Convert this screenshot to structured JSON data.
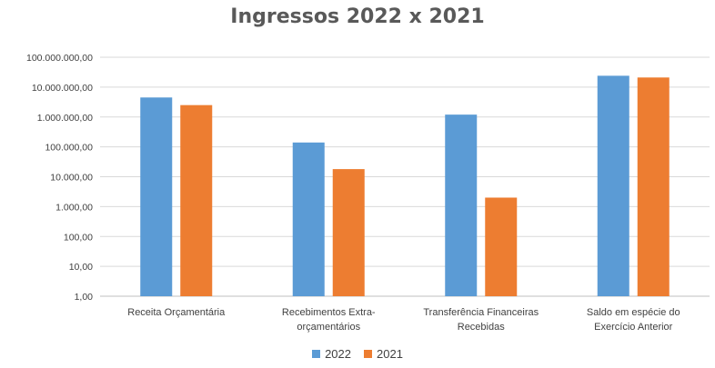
{
  "chart_data": {
    "type": "bar",
    "title": "Ingressos 2022 x 2021",
    "xlabel": "",
    "ylabel": "",
    "scale": "log",
    "ylim": [
      1,
      100000000
    ],
    "y_ticks": [
      "1,00",
      "10,00",
      "100,00",
      "1.000,00",
      "10.000,00",
      "100.000,00",
      "1.000.000,00",
      "10.000.000,00",
      "100.000.000,00"
    ],
    "categories": [
      [
        "Receita Orçamentária"
      ],
      [
        "Recebimentos Extra-",
        "orçamentários"
      ],
      [
        "Transferência Financeiras",
        "Recebidas"
      ],
      [
        "Saldo em espécie do",
        "Exercício Anterior"
      ]
    ],
    "series": [
      {
        "name": "2022",
        "color": "#5B9BD5",
        "values": [
          4500000,
          140000,
          1200000,
          24000000
        ]
      },
      {
        "name": "2021",
        "color": "#ED7D31",
        "values": [
          2500000,
          18000,
          2000,
          21000000
        ]
      }
    ],
    "grid": true,
    "legend": "bottom"
  }
}
